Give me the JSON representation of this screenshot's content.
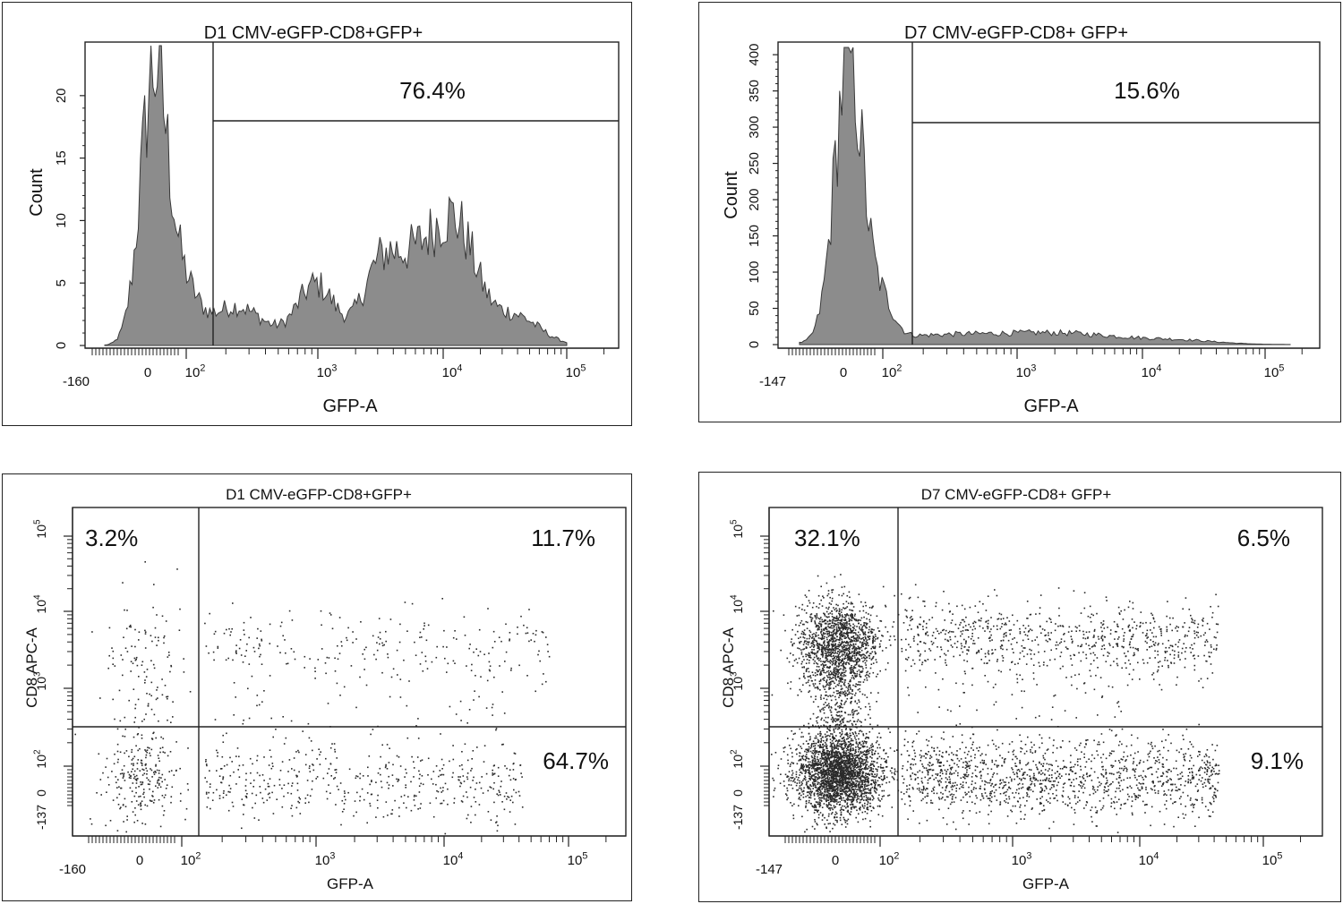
{
  "chart_data": [
    {
      "type": "histogram",
      "title": "D1 CMV-eGFP-CD8+GFP+",
      "xlabel": "GFP-A",
      "ylabel": "Count",
      "x_scale": "biexponential",
      "x_ticks": [
        "-160",
        "0",
        "10^2",
        "10^3",
        "10^4",
        "10^5"
      ],
      "y_ticks": [
        "0",
        "5",
        "10",
        "15",
        "20"
      ],
      "ylim": [
        0,
        24
      ],
      "gate": {
        "label": "76.4%",
        "from": "1.5x10^2",
        "to": "7x10^4"
      },
      "fill_color": "#8c8c8c",
      "peaks": [
        {
          "center": "0",
          "count": 23
        },
        {
          "center": "5x10^2",
          "count": 5
        },
        {
          "center": "1x10^3",
          "count": 5
        },
        {
          "center": "5x10^3",
          "count": 9
        },
        {
          "center": "1x10^4",
          "count": 9
        }
      ]
    },
    {
      "type": "histogram",
      "title": "D7 CMV-eGFP-CD8+ GFP+",
      "xlabel": "GFP-A",
      "ylabel": "Count",
      "x_scale": "biexponential",
      "x_ticks": [
        "-147",
        "0",
        "10^2",
        "10^3",
        "10^4",
        "10^5"
      ],
      "y_ticks": [
        "0",
        "50",
        "100",
        "150",
        "200",
        "250",
        "300",
        "350",
        "400"
      ],
      "ylim": [
        0,
        410
      ],
      "gate": {
        "label": "15.6%",
        "from": "1.5x10^2",
        "to": "1x10^5"
      },
      "fill_color": "#8c8c8c",
      "peaks": [
        {
          "center": "0",
          "count": 400
        },
        {
          "center": "1x10^3",
          "count": 15
        }
      ]
    },
    {
      "type": "scatter",
      "title": "D1 CMV-eGFP-CD8+GFP+",
      "xlabel": "GFP-A",
      "ylabel": "CD8 APC-A",
      "x_scale": "biexponential",
      "y_scale": "biexponential",
      "x_ticks": [
        "-160",
        "0",
        "10^2",
        "10^3",
        "10^4",
        "10^5"
      ],
      "y_ticks": [
        "-137",
        "0",
        "10^2",
        "10^3",
        "10^4",
        "10^5"
      ],
      "quadrant_gate": {
        "x": "1.5x10^2",
        "y": "3x10^2"
      },
      "quadrants": {
        "upper_left": "3.2%",
        "upper_right": "11.7%",
        "lower_right": "64.7%"
      },
      "event_density": "sparse"
    },
    {
      "type": "scatter",
      "title": "D7 CMV-eGFP-CD8+ GFP+",
      "xlabel": "GFP-A",
      "ylabel": "CD8 APC-A",
      "x_scale": "biexponential",
      "y_scale": "biexponential",
      "x_ticks": [
        "-147",
        "0",
        "10^2",
        "10^3",
        "10^4",
        "10^5"
      ],
      "y_ticks": [
        "-137",
        "0",
        "10^2",
        "10^3",
        "10^4",
        "10^5"
      ],
      "quadrant_gate": {
        "x": "1.5x10^2",
        "y": "3x10^2"
      },
      "quadrants": {
        "upper_left": "32.1%",
        "upper_right": "6.5%",
        "lower_right": "9.1%"
      },
      "event_density": "dense"
    }
  ]
}
